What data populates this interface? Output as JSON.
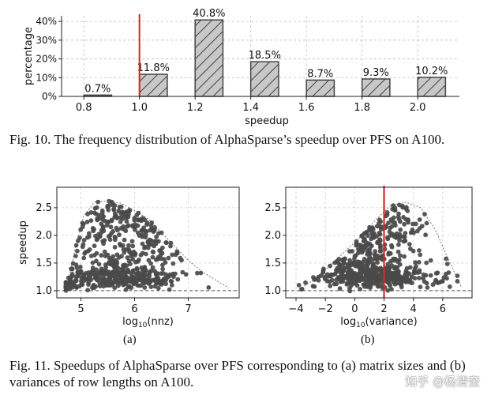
{
  "fig10": {
    "caption": "Fig. 10.  The frequency distribution of AlphaSparse’s speedup over PFS on A100.",
    "chart_data": {
      "type": "bar",
      "categories": [
        "0.8-1.0",
        "1.0-1.2",
        "1.2-1.4",
        "1.4-1.6",
        "1.6-1.8",
        "1.8-2.0",
        "2.0+"
      ],
      "bin_centers": [
        0.85,
        1.05,
        1.25,
        1.45,
        1.65,
        1.85,
        2.05
      ],
      "values": [
        0.7,
        11.8,
        40.8,
        18.5,
        8.7,
        9.3,
        10.2
      ],
      "value_labels": [
        "0.7%",
        "11.8%",
        "40.8%",
        "18.5%",
        "8.7%",
        "9.3%",
        "10.2%"
      ],
      "xlabel": "speedup",
      "ylabel": "percentage",
      "xticks": [
        "0.8",
        "1.0",
        "1.2",
        "1.4",
        "1.6",
        "1.8",
        "2.0"
      ],
      "xtick_values": [
        0.8,
        1.0,
        1.2,
        1.4,
        1.6,
        1.8,
        2.0
      ],
      "yticks": [
        "0%",
        "10%",
        "20%",
        "30%",
        "40%"
      ],
      "ytick_values": [
        0,
        10,
        20,
        30,
        40
      ],
      "xlim": [
        0.72,
        2.15
      ],
      "ylim": [
        0,
        43
      ],
      "reference_line_x": 1.0,
      "bar_color": "#c8c8c8",
      "line_color": "#d62728"
    }
  },
  "fig11": {
    "caption": "Fig. 11.  Speedups of AlphaSparse over PFS corresponding to (a) matrix sizes and (b) variances of row lengths on A100.",
    "panel_a": {
      "label": "(a)",
      "chart_data": {
        "type": "scatter",
        "xlabel": "log10(nnz)",
        "xlabel_main": "log",
        "xlabel_sub": "10",
        "xlabel_rest": "(nnz)",
        "ylabel": "speedup",
        "xticks": [
          "5",
          "6",
          "7"
        ],
        "xtick_values": [
          5,
          6,
          7
        ],
        "yticks": [
          "1.0",
          "1.5",
          "2.0",
          "2.5"
        ],
        "ytick_values": [
          1.0,
          1.5,
          2.0,
          2.5
        ],
        "xlim": [
          4.55,
          7.95
        ],
        "ylim": [
          0.87,
          2.87
        ],
        "baseline_y": 1.0,
        "envelope_x": [
          4.75,
          4.9,
          5.05,
          5.25,
          5.5,
          5.75,
          6.0,
          6.25,
          6.5,
          6.75,
          7.0,
          7.25,
          7.5,
          7.75
        ],
        "envelope_y": [
          1.1,
          1.8,
          2.35,
          2.6,
          2.62,
          2.58,
          2.45,
          2.3,
          2.05,
          1.8,
          1.55,
          1.35,
          1.2,
          1.05
        ],
        "x_center": 5.7,
        "x_spread": 0.55,
        "x_min": 4.72,
        "x_max": 7.75,
        "point_count": 620,
        "seed": 11,
        "point_color": "#4a4a4a"
      }
    },
    "panel_b": {
      "label": "(b)",
      "chart_data": {
        "type": "scatter",
        "xlabel": "log10(variance)",
        "xlabel_main": "log",
        "xlabel_sub": "10",
        "xlabel_rest": "(variance)",
        "ylabel": "",
        "xticks": [
          "−4",
          "−2",
          "0",
          "2",
          "4",
          "6"
        ],
        "xtick_values": [
          -4,
          -2,
          0,
          2,
          4,
          6
        ],
        "yticks": [
          "1.0",
          "1.5",
          "2.0",
          "2.5"
        ],
        "ytick_values": [
          1.0,
          1.5,
          2.0,
          2.5
        ],
        "xlim": [
          -4.7,
          8.0
        ],
        "ylim": [
          0.87,
          2.87
        ],
        "baseline_y": 1.0,
        "reference_line_x": 2.0,
        "envelope_x": [
          -3.6,
          -2.5,
          -1.5,
          -0.5,
          0.5,
          1.5,
          2.5,
          3.5,
          4.5,
          5.5,
          6.5,
          7.3
        ],
        "envelope_y": [
          1.05,
          1.25,
          1.5,
          1.75,
          2.0,
          2.3,
          2.55,
          2.6,
          2.5,
          2.1,
          1.5,
          1.05
        ],
        "x_center": 1.5,
        "x_spread": 1.9,
        "x_min": -3.8,
        "x_max": 7.0,
        "point_count": 620,
        "seed": 29,
        "point_color": "#4a4a4a",
        "line_color": "#d62728"
      }
    }
  },
  "watermark": "知乎 @杨清奎"
}
